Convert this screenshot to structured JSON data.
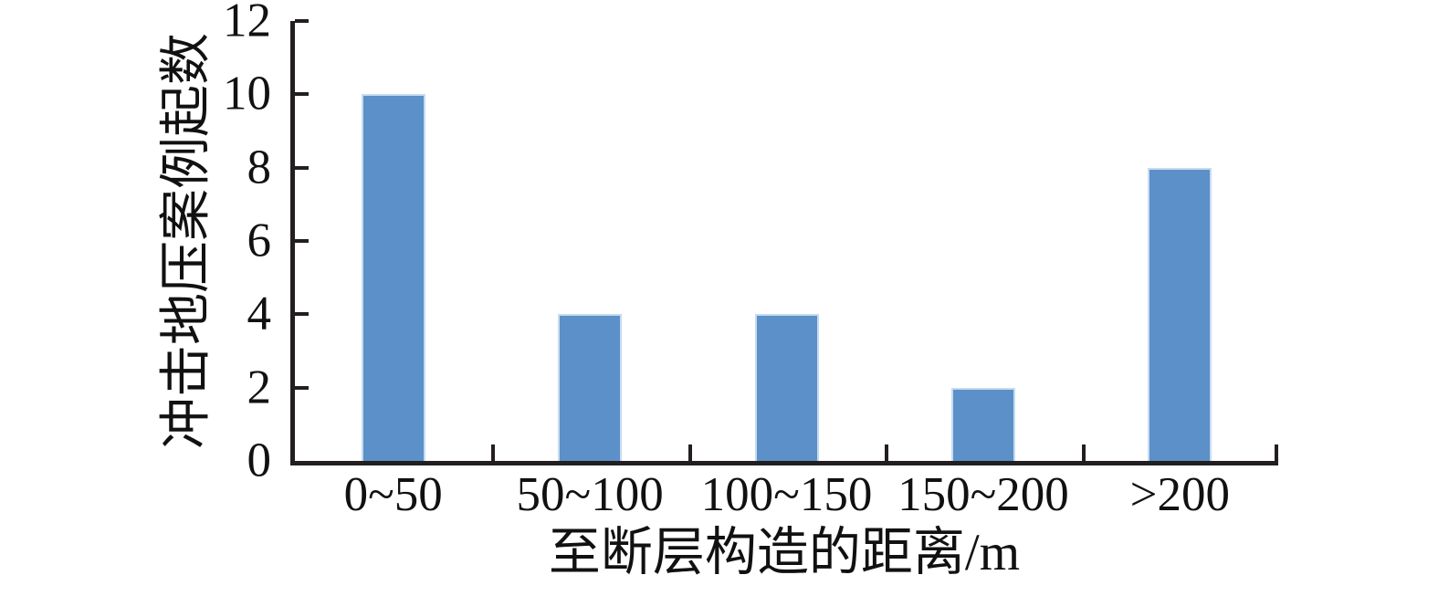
{
  "chart_data": {
    "type": "bar",
    "categories": [
      "0~50",
      "50~100",
      "100~150",
      "150~200",
      ">200"
    ],
    "values": [
      10,
      4,
      4,
      2,
      8
    ],
    "title": "",
    "xlabel": "至断层构造的距离/m",
    "ylabel": "冲击地压案例起数",
    "ylim": [
      0,
      12
    ],
    "yticks": [
      0,
      2,
      4,
      6,
      8,
      10,
      12
    ],
    "grid": false,
    "legend": "none",
    "colors": {
      "bar_fill": "#5b90c8",
      "bar_border": "#c6dbf1",
      "axis": "#231f20",
      "text": "#111111",
      "background": "#ffffff"
    }
  }
}
